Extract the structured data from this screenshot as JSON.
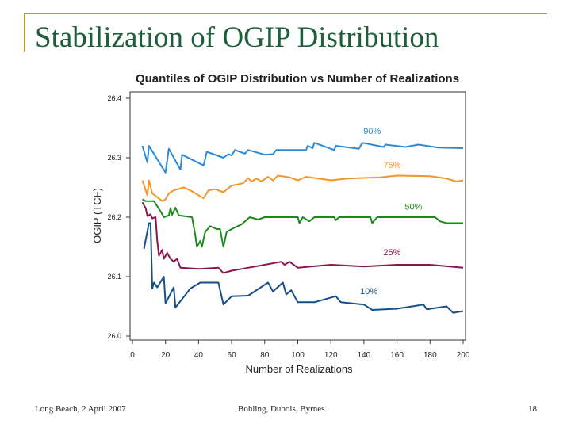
{
  "slide": {
    "title": "Stabilization of OGIP Distribution",
    "footer_left": "Long Beach, 2 April 2007",
    "footer_center": "Bohling, Dubois, Byrnes",
    "page_number": "18",
    "accent_color": "#b09a3c",
    "title_color": "#1e5e3c"
  },
  "chart_data": {
    "type": "line",
    "title": "Quantiles of OGIP Distribution vs Number of Realizations",
    "xlabel": "Number of Realizations",
    "ylabel": "OGIP (TCF)",
    "xlim": [
      0,
      200
    ],
    "ylim": [
      26.0,
      26.4
    ],
    "xticks": [
      "0",
      "20",
      "40",
      "60",
      "80",
      "100",
      "120",
      "140",
      "160",
      "180",
      "200"
    ],
    "yticks": [
      "26.0",
      "26.1",
      "26.2",
      "26.3",
      "26.4"
    ],
    "grid": false,
    "legend": "inline labels",
    "series": [
      {
        "name": "90%",
        "color": "#2a8ad8",
        "points": [
          [
            6,
            26.32
          ],
          [
            9,
            26.292
          ],
          [
            10,
            26.32
          ],
          [
            20,
            26.275
          ],
          [
            22,
            26.315
          ],
          [
            29,
            26.28
          ],
          [
            30,
            26.305
          ],
          [
            43,
            26.287
          ],
          [
            45,
            26.31
          ],
          [
            55,
            26.3
          ],
          [
            58,
            26.306
          ],
          [
            60,
            26.304
          ],
          [
            62,
            26.313
          ],
          [
            68,
            26.307
          ],
          [
            70,
            26.313
          ],
          [
            80,
            26.305
          ],
          [
            85,
            26.306
          ],
          [
            87,
            26.313
          ],
          [
            105,
            26.313
          ],
          [
            106,
            26.32
          ],
          [
            109,
            26.316
          ],
          [
            110,
            26.325
          ],
          [
            122,
            26.313
          ],
          [
            123,
            26.32
          ],
          [
            137,
            26.315
          ],
          [
            139,
            26.325
          ],
          [
            152,
            26.318
          ],
          [
            153,
            26.322
          ],
          [
            165,
            26.318
          ],
          [
            173,
            26.322
          ],
          [
            185,
            26.317
          ],
          [
            200,
            26.316
          ]
        ]
      },
      {
        "name": "75%",
        "color": "#f0962a",
        "points": [
          [
            6,
            26.262
          ],
          [
            9,
            26.237
          ],
          [
            10,
            26.262
          ],
          [
            12,
            26.24
          ],
          [
            18,
            26.227
          ],
          [
            20,
            26.23
          ],
          [
            22,
            26.24
          ],
          [
            25,
            26.245
          ],
          [
            31,
            26.25
          ],
          [
            35,
            26.245
          ],
          [
            43,
            26.232
          ],
          [
            46,
            26.245
          ],
          [
            50,
            26.247
          ],
          [
            55,
            26.242
          ],
          [
            60,
            26.253
          ],
          [
            67,
            26.257
          ],
          [
            70,
            26.266
          ],
          [
            72,
            26.26
          ],
          [
            75,
            26.265
          ],
          [
            78,
            26.26
          ],
          [
            82,
            26.268
          ],
          [
            85,
            26.262
          ],
          [
            88,
            26.27
          ],
          [
            95,
            26.267
          ],
          [
            100,
            26.262
          ],
          [
            105,
            26.268
          ],
          [
            120,
            26.262
          ],
          [
            130,
            26.265
          ],
          [
            150,
            26.267
          ],
          [
            160,
            26.27
          ],
          [
            180,
            26.269
          ],
          [
            190,
            26.265
          ],
          [
            196,
            26.26
          ],
          [
            200,
            26.262
          ]
        ]
      },
      {
        "name": "50%",
        "color": "#1e8a1e",
        "points": [
          [
            6,
            26.23
          ],
          [
            8,
            26.227
          ],
          [
            13,
            26.227
          ],
          [
            17,
            26.21
          ],
          [
            19,
            26.2
          ],
          [
            22,
            26.203
          ],
          [
            23,
            26.215
          ],
          [
            24,
            26.204
          ],
          [
            26,
            26.216
          ],
          [
            28,
            26.203
          ],
          [
            36,
            26.2
          ],
          [
            38,
            26.17
          ],
          [
            39,
            26.15
          ],
          [
            41,
            26.16
          ],
          [
            42,
            26.15
          ],
          [
            44,
            26.175
          ],
          [
            47,
            26.185
          ],
          [
            51,
            26.18
          ],
          [
            53,
            26.18
          ],
          [
            55,
            26.15
          ],
          [
            57,
            26.175
          ],
          [
            60,
            26.18
          ],
          [
            66,
            26.188
          ],
          [
            71,
            26.2
          ],
          [
            76,
            26.196
          ],
          [
            80,
            26.2
          ],
          [
            100,
            26.2
          ],
          [
            101,
            26.19
          ],
          [
            103,
            26.2
          ],
          [
            107,
            26.193
          ],
          [
            110,
            26.2
          ],
          [
            122,
            26.2
          ],
          [
            123,
            26.195
          ],
          [
            125,
            26.2
          ],
          [
            144,
            26.2
          ],
          [
            145,
            26.19
          ],
          [
            148,
            26.2
          ],
          [
            183,
            26.2
          ],
          [
            186,
            26.193
          ],
          [
            190,
            26.19
          ],
          [
            200,
            26.19
          ]
        ]
      },
      {
        "name": "25%",
        "color": "#8a1650",
        "points": [
          [
            6,
            26.225
          ],
          [
            8,
            26.215
          ],
          [
            9,
            26.202
          ],
          [
            11,
            26.205
          ],
          [
            12,
            26.198
          ],
          [
            14,
            26.2
          ],
          [
            15,
            26.16
          ],
          [
            16,
            26.135
          ],
          [
            18,
            26.145
          ],
          [
            19,
            26.13
          ],
          [
            21,
            26.14
          ],
          [
            23,
            26.13
          ],
          [
            25,
            26.125
          ],
          [
            27,
            26.13
          ],
          [
            29,
            26.115
          ],
          [
            40,
            26.113
          ],
          [
            52,
            26.115
          ],
          [
            55,
            26.106
          ],
          [
            60,
            26.11
          ],
          [
            70,
            26.115
          ],
          [
            80,
            26.12
          ],
          [
            90,
            26.125
          ],
          [
            92,
            26.12
          ],
          [
            95,
            26.125
          ],
          [
            100,
            26.115
          ],
          [
            120,
            26.12
          ],
          [
            140,
            26.117
          ],
          [
            160,
            26.12
          ],
          [
            180,
            26.12
          ],
          [
            200,
            26.115
          ]
        ]
      },
      {
        "name": "10%",
        "color": "#154e8a",
        "points": [
          [
            7,
            26.147
          ],
          [
            10,
            26.19
          ],
          [
            11,
            26.19
          ],
          [
            12,
            26.08
          ],
          [
            13,
            26.09
          ],
          [
            15,
            26.082
          ],
          [
            19,
            26.1
          ],
          [
            20,
            26.055
          ],
          [
            25,
            26.082
          ],
          [
            26,
            26.048
          ],
          [
            35,
            26.08
          ],
          [
            41,
            26.09
          ],
          [
            52,
            26.09
          ],
          [
            55,
            26.053
          ],
          [
            60,
            26.067
          ],
          [
            70,
            26.068
          ],
          [
            82,
            26.09
          ],
          [
            85,
            26.075
          ],
          [
            91,
            26.09
          ],
          [
            93,
            26.07
          ],
          [
            96,
            26.077
          ],
          [
            100,
            26.057
          ],
          [
            110,
            26.057
          ],
          [
            123,
            26.067
          ],
          [
            126,
            26.057
          ],
          [
            140,
            26.053
          ],
          [
            145,
            26.044
          ],
          [
            160,
            26.046
          ],
          [
            176,
            26.053
          ],
          [
            178,
            26.045
          ],
          [
            190,
            26.05
          ],
          [
            194,
            26.039
          ],
          [
            200,
            26.042
          ]
        ]
      }
    ]
  }
}
